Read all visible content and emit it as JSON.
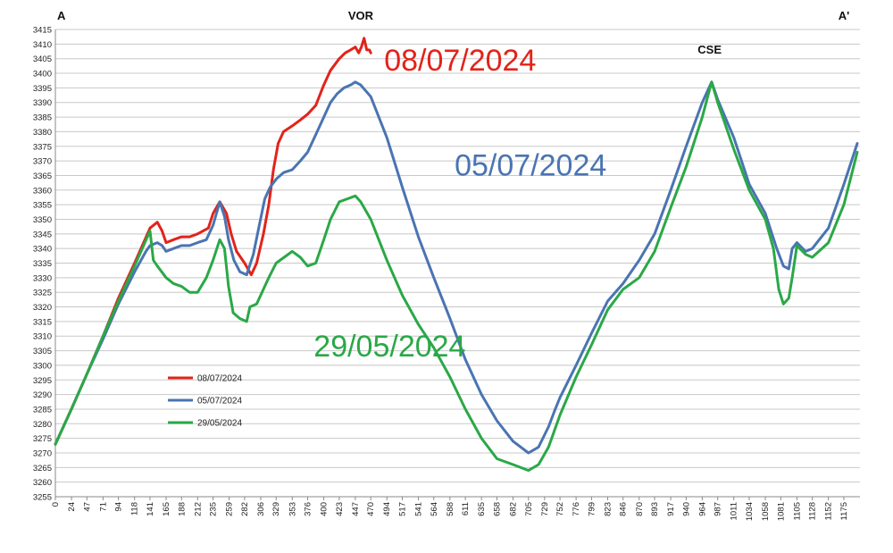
{
  "chart_data": {
    "type": "line",
    "xlim": [
      0,
      1199
    ],
    "ylim": [
      3255,
      3415
    ],
    "ytick_step": 5,
    "grid": true,
    "x_ticks": [
      "0",
      "24",
      "47",
      "71",
      "94",
      "118",
      "141",
      "165",
      "188",
      "212",
      "235",
      "259",
      "282",
      "306",
      "329",
      "353",
      "376",
      "400",
      "423",
      "447",
      "470",
      "494",
      "517",
      "541",
      "564",
      "588",
      "611",
      "635",
      "658",
      "682",
      "705",
      "729",
      "752",
      "776",
      "799",
      "823",
      "846",
      "870",
      "893",
      "917",
      "940",
      "964",
      "987",
      "1011",
      "1034",
      "1058",
      "1081",
      "1105",
      "1128",
      "1152",
      "1175"
    ],
    "annotations": [
      {
        "text": "A",
        "x": 0,
        "y": 3415
      },
      {
        "text": "VOR",
        "x": 455,
        "y": 3415
      },
      {
        "text": "A'",
        "x": 1175,
        "y": 3415
      },
      {
        "text": "CSE",
        "x": 975,
        "y": 3408
      }
    ],
    "legend": {
      "position": "lower-left"
    },
    "series": [
      {
        "name": "08/07/2024",
        "color": "#e2231a",
        "label_position": {
          "x": 490,
          "y": 3401
        },
        "points": [
          [
            0,
            3273
          ],
          [
            24,
            3285
          ],
          [
            47,
            3297
          ],
          [
            71,
            3310
          ],
          [
            94,
            3323
          ],
          [
            118,
            3335
          ],
          [
            141,
            3347
          ],
          [
            152,
            3349
          ],
          [
            159,
            3346
          ],
          [
            165,
            3342
          ],
          [
            176,
            3343
          ],
          [
            188,
            3344
          ],
          [
            200,
            3344
          ],
          [
            212,
            3345
          ],
          [
            228,
            3347
          ],
          [
            235,
            3352
          ],
          [
            245,
            3356
          ],
          [
            255,
            3352
          ],
          [
            262,
            3345
          ],
          [
            270,
            3339
          ],
          [
            282,
            3335
          ],
          [
            292,
            3331
          ],
          [
            300,
            3335
          ],
          [
            310,
            3345
          ],
          [
            318,
            3355
          ],
          [
            325,
            3367
          ],
          [
            332,
            3376
          ],
          [
            340,
            3380
          ],
          [
            353,
            3382
          ],
          [
            365,
            3384
          ],
          [
            376,
            3386
          ],
          [
            388,
            3389
          ],
          [
            400,
            3396
          ],
          [
            410,
            3401
          ],
          [
            423,
            3405
          ],
          [
            432,
            3407
          ],
          [
            440,
            3408
          ],
          [
            447,
            3409
          ],
          [
            452,
            3407
          ],
          [
            456,
            3409
          ],
          [
            460,
            3412
          ],
          [
            464,
            3408
          ],
          [
            468,
            3408
          ],
          [
            470,
            3407
          ]
        ]
      },
      {
        "name": "05/07/2024",
        "color": "#4a74b2",
        "label_position": {
          "x": 595,
          "y": 3365
        },
        "points": [
          [
            0,
            3273
          ],
          [
            24,
            3285
          ],
          [
            47,
            3297
          ],
          [
            71,
            3309
          ],
          [
            94,
            3321
          ],
          [
            118,
            3332
          ],
          [
            135,
            3339
          ],
          [
            141,
            3341
          ],
          [
            152,
            3342
          ],
          [
            159,
            3341
          ],
          [
            165,
            3339
          ],
          [
            176,
            3340
          ],
          [
            188,
            3341
          ],
          [
            200,
            3341
          ],
          [
            212,
            3342
          ],
          [
            225,
            3343
          ],
          [
            235,
            3348
          ],
          [
            245,
            3356
          ],
          [
            252,
            3351
          ],
          [
            258,
            3343
          ],
          [
            266,
            3336
          ],
          [
            275,
            3332
          ],
          [
            285,
            3331
          ],
          [
            295,
            3338
          ],
          [
            303,
            3347
          ],
          [
            312,
            3357
          ],
          [
            320,
            3361
          ],
          [
            330,
            3364
          ],
          [
            340,
            3366
          ],
          [
            353,
            3367
          ],
          [
            365,
            3370
          ],
          [
            376,
            3373
          ],
          [
            388,
            3379
          ],
          [
            400,
            3385
          ],
          [
            410,
            3390
          ],
          [
            420,
            3393
          ],
          [
            430,
            3395
          ],
          [
            440,
            3396
          ],
          [
            447,
            3397
          ],
          [
            455,
            3396
          ],
          [
            470,
            3392
          ],
          [
            494,
            3378
          ],
          [
            517,
            3361
          ],
          [
            541,
            3344
          ],
          [
            564,
            3330
          ],
          [
            588,
            3316
          ],
          [
            611,
            3302
          ],
          [
            635,
            3290
          ],
          [
            658,
            3281
          ],
          [
            682,
            3274
          ],
          [
            705,
            3270
          ],
          [
            720,
            3272
          ],
          [
            735,
            3279
          ],
          [
            745,
            3285
          ],
          [
            752,
            3289
          ],
          [
            776,
            3300
          ],
          [
            799,
            3311
          ],
          [
            823,
            3322
          ],
          [
            846,
            3328
          ],
          [
            870,
            3336
          ],
          [
            893,
            3345
          ],
          [
            917,
            3360
          ],
          [
            940,
            3375
          ],
          [
            964,
            3390
          ],
          [
            978,
            3397
          ],
          [
            987,
            3391
          ],
          [
            1011,
            3378
          ],
          [
            1034,
            3362
          ],
          [
            1058,
            3352
          ],
          [
            1075,
            3340
          ],
          [
            1085,
            3334
          ],
          [
            1093,
            3333
          ],
          [
            1098,
            3340
          ],
          [
            1105,
            3342
          ],
          [
            1118,
            3339
          ],
          [
            1128,
            3340
          ],
          [
            1152,
            3347
          ],
          [
            1175,
            3362
          ],
          [
            1195,
            3376
          ]
        ]
      },
      {
        "name": "29/05/2024",
        "color": "#2aa847",
        "label_position": {
          "x": 385,
          "y": 3303
        },
        "points": [
          [
            0,
            3273
          ],
          [
            24,
            3285
          ],
          [
            47,
            3297
          ],
          [
            71,
            3310
          ],
          [
            94,
            3322
          ],
          [
            118,
            3334
          ],
          [
            141,
            3346
          ],
          [
            146,
            3336
          ],
          [
            152,
            3334
          ],
          [
            165,
            3330
          ],
          [
            176,
            3328
          ],
          [
            188,
            3327
          ],
          [
            200,
            3325
          ],
          [
            212,
            3325
          ],
          [
            225,
            3330
          ],
          [
            235,
            3336
          ],
          [
            245,
            3343
          ],
          [
            252,
            3340
          ],
          [
            258,
            3327
          ],
          [
            265,
            3318
          ],
          [
            275,
            3316
          ],
          [
            285,
            3315
          ],
          [
            290,
            3320
          ],
          [
            300,
            3321
          ],
          [
            306,
            3324
          ],
          [
            318,
            3330
          ],
          [
            329,
            3335
          ],
          [
            341,
            3337
          ],
          [
            353,
            3339
          ],
          [
            365,
            3337
          ],
          [
            376,
            3334
          ],
          [
            388,
            3335
          ],
          [
            400,
            3343
          ],
          [
            410,
            3350
          ],
          [
            423,
            3356
          ],
          [
            435,
            3357
          ],
          [
            447,
            3358
          ],
          [
            455,
            3356
          ],
          [
            470,
            3350
          ],
          [
            494,
            3336
          ],
          [
            517,
            3324
          ],
          [
            541,
            3314
          ],
          [
            564,
            3306
          ],
          [
            588,
            3296
          ],
          [
            611,
            3285
          ],
          [
            635,
            3275
          ],
          [
            658,
            3268
          ],
          [
            682,
            3266
          ],
          [
            705,
            3264
          ],
          [
            720,
            3266
          ],
          [
            735,
            3272
          ],
          [
            752,
            3283
          ],
          [
            776,
            3296
          ],
          [
            799,
            3307
          ],
          [
            823,
            3319
          ],
          [
            846,
            3326
          ],
          [
            870,
            3330
          ],
          [
            893,
            3339
          ],
          [
            917,
            3354
          ],
          [
            940,
            3368
          ],
          [
            964,
            3385
          ],
          [
            978,
            3397
          ],
          [
            987,
            3390
          ],
          [
            1011,
            3374
          ],
          [
            1034,
            3360
          ],
          [
            1058,
            3350
          ],
          [
            1070,
            3340
          ],
          [
            1078,
            3326
          ],
          [
            1085,
            3321
          ],
          [
            1093,
            3323
          ],
          [
            1098,
            3330
          ],
          [
            1105,
            3341
          ],
          [
            1118,
            3338
          ],
          [
            1128,
            3337
          ],
          [
            1152,
            3342
          ],
          [
            1175,
            3355
          ],
          [
            1195,
            3373
          ]
        ]
      }
    ]
  }
}
